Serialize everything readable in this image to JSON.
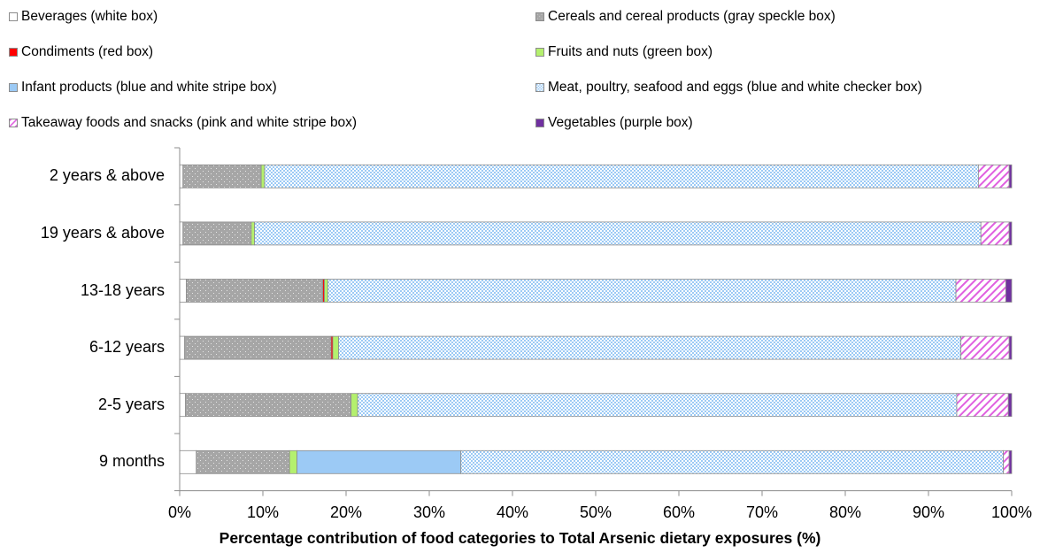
{
  "chart_data": {
    "type": "bar",
    "orientation": "horizontal",
    "stacked": true,
    "percent_scale": true,
    "title": "",
    "xlabel": "Percentage contribution of food categories to Total Arsenic dietary exposures (%)",
    "ylabel": "",
    "xlim": [
      0,
      100
    ],
    "x_ticks": [
      "0%",
      "10%",
      "20%",
      "30%",
      "40%",
      "50%",
      "60%",
      "70%",
      "80%",
      "90%",
      "100%"
    ],
    "grid": false,
    "legend_position": "top",
    "categories": [
      "2 years & above",
      "19 years & above",
      "13-18 years",
      "6-12 years",
      "2-5 years",
      "9 months"
    ],
    "series": [
      {
        "name": "Beverages (white box)",
        "color": "#ffffff",
        "pattern": "solid",
        "values": [
          0.4,
          0.4,
          0.8,
          0.6,
          0.7,
          2.0
        ]
      },
      {
        "name": "Cereals and cereal products (gray speckle box)",
        "color": "#a6a6a6",
        "pattern": "speckle",
        "values": [
          9.4,
          8.2,
          16.4,
          17.6,
          19.9,
          11.2
        ]
      },
      {
        "name": "Condiments (red box)",
        "color": "#ff0000",
        "pattern": "solid",
        "values": [
          0.0,
          0.0,
          0.2,
          0.2,
          0.0,
          0.0
        ]
      },
      {
        "name": "Fruits and nuts (green box)",
        "color": "#b4f06e",
        "pattern": "solid",
        "values": [
          0.4,
          0.4,
          0.4,
          0.7,
          0.8,
          0.9
        ]
      },
      {
        "name": "Infant products (blue and white stripe box)",
        "color": "#9ccaf5",
        "pattern": "solid",
        "values": [
          0.0,
          0.0,
          0.0,
          0.0,
          0.0,
          19.7
        ]
      },
      {
        "name": "Meat, poultry, seafood and eggs (blue and white checker box)",
        "color": "#9ccaf5",
        "pattern": "checker",
        "values": [
          85.8,
          87.3,
          75.5,
          74.8,
          72.0,
          65.2
        ]
      },
      {
        "name": "Takeaway foods and snacks (pink and white stripe box)",
        "color": "#e060e0",
        "pattern": "stripe",
        "values": [
          3.7,
          3.4,
          6.0,
          5.8,
          6.2,
          0.7
        ]
      },
      {
        "name": "Vegetables (purple box)",
        "color": "#7030a0",
        "pattern": "solid",
        "values": [
          0.3,
          0.3,
          0.7,
          0.3,
          0.4,
          0.3
        ]
      }
    ]
  }
}
